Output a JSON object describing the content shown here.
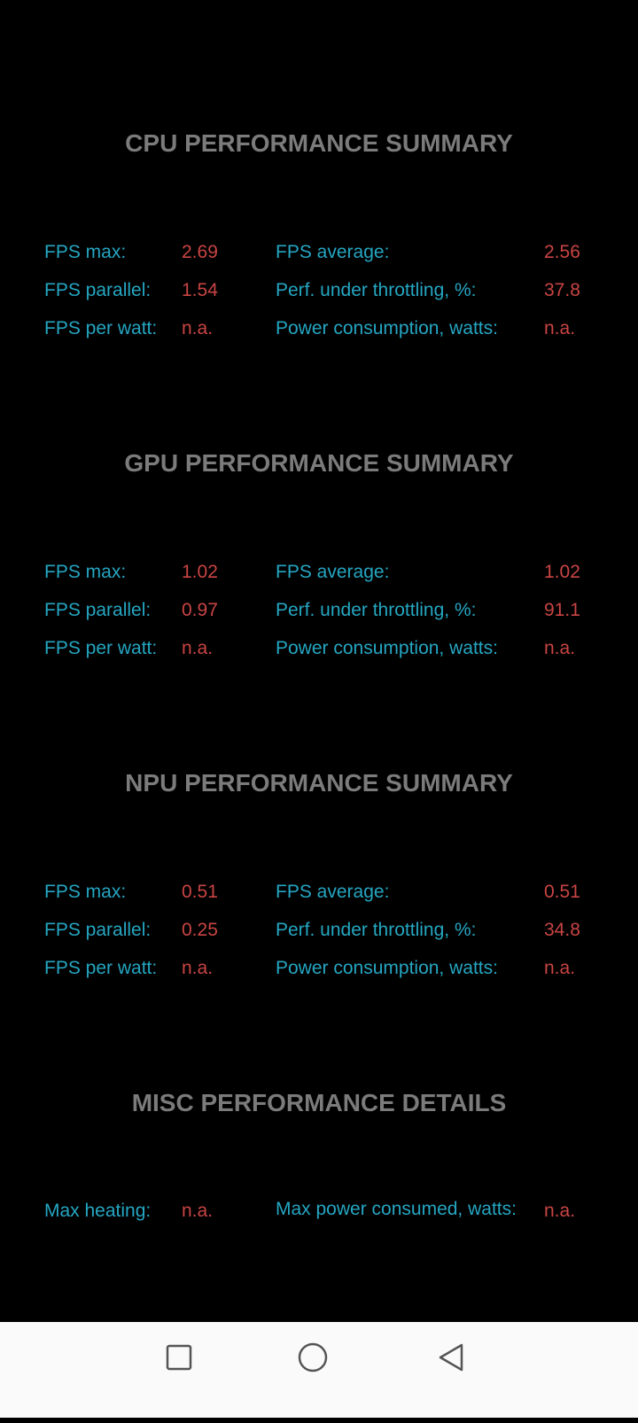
{
  "sections": [
    {
      "title": "CPU PERFORMANCE SUMMARY",
      "rows": [
        {
          "label1": "FPS max:",
          "value1": "2.69",
          "label2": "FPS average:",
          "value2": "2.56"
        },
        {
          "label1": "FPS parallel:",
          "value1": "1.54",
          "label2": "Perf. under throttling, %:",
          "value2": "37.8"
        },
        {
          "label1": "FPS per watt:",
          "value1": "n.a.",
          "label2": "Power consumption, watts:",
          "value2": "n.a."
        }
      ]
    },
    {
      "title": "GPU PERFORMANCE SUMMARY",
      "rows": [
        {
          "label1": "FPS max:",
          "value1": "1.02",
          "label2": "FPS average:",
          "value2": "1.02"
        },
        {
          "label1": "FPS parallel:",
          "value1": "0.97",
          "label2": "Perf. under throttling, %:",
          "value2": "91.1"
        },
        {
          "label1": "FPS per watt:",
          "value1": "n.a.",
          "label2": "Power consumption, watts:",
          "value2": "n.a."
        }
      ]
    },
    {
      "title": "NPU PERFORMANCE SUMMARY",
      "rows": [
        {
          "label1": "FPS max:",
          "value1": "0.51",
          "label2": "FPS average:",
          "value2": "0.51"
        },
        {
          "label1": "FPS parallel:",
          "value1": "0.25",
          "label2": "Perf. under throttling, %:",
          "value2": "34.8"
        },
        {
          "label1": "FPS per watt:",
          "value1": "n.a.",
          "label2": "Power consumption, watts:",
          "value2": "n.a."
        }
      ]
    }
  ],
  "misc": {
    "title": "MISC PERFORMANCE DETAILS",
    "label1": "Max heating:",
    "value1": "n.a.",
    "label2": "Max power consumed, watts:",
    "value2": "n.a."
  },
  "navbar": {
    "icons": [
      "recents-square-icon",
      "home-circle-icon",
      "back-triangle-icon"
    ]
  },
  "colors": {
    "label": "#25a6c2",
    "value": "#c94444",
    "title": "#7b7b7b"
  }
}
